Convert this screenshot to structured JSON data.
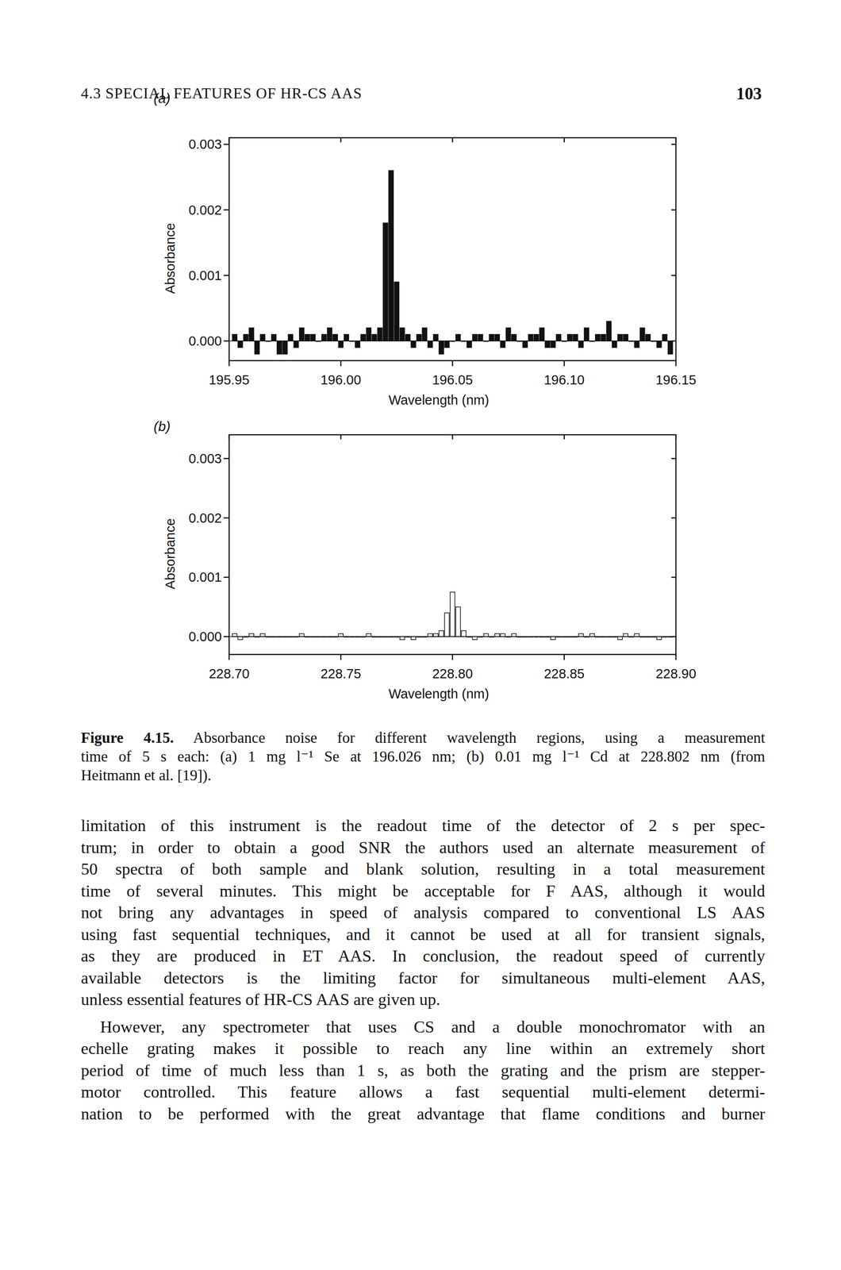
{
  "header": {
    "section": "4.3 SPECIAL FEATURES OF HR-CS AAS",
    "page": "103"
  },
  "chart_data": [
    {
      "type": "bar",
      "title": "(a)",
      "xlabel": "Wavelength (nm)",
      "ylabel": "Absorbance",
      "color": "#111111",
      "xlim": [
        195.95,
        196.15
      ],
      "ylim": [
        -0.0003,
        0.0031
      ],
      "xticks": [
        195.95,
        {
          "value": 196,
          "label": "196.00"
        },
        196.05,
        {
          "value": 196.1,
          "label": "196.10"
        },
        196.15
      ],
      "yticks": [
        {
          "value": 0,
          "label": "0.000"
        },
        {
          "value": 0.001,
          "label": "0.001"
        },
        {
          "value": 0.002,
          "label": "0.002"
        },
        {
          "value": 0.003,
          "label": "0.003"
        }
      ],
      "x": [
        195.9525,
        195.955,
        195.9575,
        195.96,
        195.9625,
        195.965,
        195.9675,
        195.97,
        195.9725,
        195.975,
        195.9775,
        195.98,
        195.9825,
        195.985,
        195.9875,
        195.99,
        195.9925,
        195.995,
        195.9975,
        196,
        196.0025,
        196.005,
        196.0075,
        196.01,
        196.0125,
        196.015,
        196.0175,
        196.02,
        196.0225,
        196.025,
        196.0275,
        196.03,
        196.0325,
        196.035,
        196.0375,
        196.04,
        196.0425,
        196.045,
        196.0475,
        196.05,
        196.0525,
        196.055,
        196.0575,
        196.06,
        196.0625,
        196.065,
        196.0675,
        196.07,
        196.0725,
        196.075,
        196.0775,
        196.08,
        196.0825,
        196.085,
        196.0875,
        196.09,
        196.0925,
        196.095,
        196.0975,
        196.1,
        196.1025,
        196.105,
        196.1075,
        196.11,
        196.1125,
        196.115,
        196.1175,
        196.12,
        196.1225,
        196.125,
        196.1275,
        196.13,
        196.1325,
        196.135,
        196.1375,
        196.14,
        196.1425,
        196.145,
        196.1475
      ],
      "values": [
        0.0001,
        -0.0001,
        0.0001,
        0.0002,
        -0.0002,
        0.0001,
        0,
        0.0001,
        -0.0002,
        -0.0002,
        0.0001,
        -0.0001,
        0.0002,
        0.0001,
        0.0001,
        0,
        0.0001,
        0.0002,
        0.0001,
        -0.0001,
        0.0001,
        0,
        -0.0001,
        0.0001,
        0.0002,
        0.0001,
        0.0002,
        0.0018,
        0.0026,
        0.0009,
        0.0002,
        0.0001,
        -0.0001,
        0.0001,
        0.0002,
        -0.0001,
        0.0001,
        -0.0002,
        -0.0001,
        0,
        0.0001,
        0,
        -0.0001,
        0.0001,
        0.0001,
        0,
        0.0001,
        0.0001,
        -0.0001,
        0.0002,
        0.0001,
        0,
        -0.0001,
        0.0001,
        0.0001,
        0.0002,
        -0.0001,
        -0.0001,
        0.0001,
        0,
        0.0001,
        0.0001,
        -0.0001,
        0.0002,
        0,
        0.0001,
        0.0001,
        0.0003,
        -0.0001,
        0.0001,
        0.0001,
        0,
        -0.0001,
        0.0002,
        0.0001,
        0,
        -0.0001,
        0.0001,
        -0.0002
      ]
    },
    {
      "type": "bar",
      "title": "(b)",
      "xlabel": "Wavelength (nm)",
      "ylabel": "Absorbance",
      "color": "#111111",
      "xlim": [
        228.7,
        228.9
      ],
      "ylim": [
        -0.0003,
        0.0034
      ],
      "xticks": [
        {
          "value": 228.7,
          "label": "228.70"
        },
        228.75,
        {
          "value": 228.8,
          "label": "228.80"
        },
        228.85,
        {
          "value": 228.9,
          "label": "228.90"
        }
      ],
      "yticks": [
        {
          "value": 0,
          "label": "0.000"
        },
        {
          "value": 0.001,
          "label": "0.001"
        },
        {
          "value": 0.002,
          "label": "0.002"
        },
        {
          "value": 0.003,
          "label": "0.003"
        }
      ],
      "x": [
        228.7025,
        228.705,
        228.7075,
        228.71,
        228.7125,
        228.715,
        228.7175,
        228.72,
        228.7225,
        228.725,
        228.7275,
        228.73,
        228.7325,
        228.735,
        228.7375,
        228.74,
        228.7425,
        228.745,
        228.7475,
        228.75,
        228.7525,
        228.755,
        228.7575,
        228.76,
        228.7625,
        228.765,
        228.7675,
        228.77,
        228.7725,
        228.775,
        228.7775,
        228.78,
        228.7825,
        228.785,
        228.7875,
        228.79,
        228.7925,
        228.795,
        228.7975,
        228.8,
        228.8025,
        228.805,
        228.8075,
        228.81,
        228.8125,
        228.815,
        228.8175,
        228.82,
        228.8225,
        228.825,
        228.8275,
        228.83,
        228.8325,
        228.835,
        228.8375,
        228.84,
        228.8425,
        228.845,
        228.8475,
        228.85,
        228.8525,
        228.855,
        228.8575,
        228.86,
        228.8625,
        228.865,
        228.8675,
        228.87,
        228.8725,
        228.875,
        228.8775,
        228.88,
        228.8825,
        228.885,
        228.8875,
        228.89,
        228.8925,
        228.895,
        228.8975
      ],
      "values": [
        5e-05,
        -5e-05,
        0,
        5e-05,
        0,
        5e-05,
        0,
        0,
        0,
        0,
        0,
        0,
        5e-05,
        0,
        0,
        0,
        0,
        0,
        0,
        5e-05,
        0,
        0,
        0,
        0,
        5e-05,
        0,
        0,
        0,
        0,
        0,
        -5e-05,
        0,
        -5e-05,
        0,
        0,
        5e-05,
        5e-05,
        0.0001,
        0.0004,
        0.00075,
        0.0005,
        0.0001,
        0,
        -5e-05,
        0,
        5e-05,
        0,
        5e-05,
        5e-05,
        0,
        5e-05,
        0,
        0,
        0,
        0,
        0,
        0,
        -5e-05,
        0,
        0,
        0,
        0,
        5e-05,
        0,
        5e-05,
        0,
        0,
        0,
        0,
        -5e-05,
        5e-05,
        0,
        5e-05,
        0,
        0,
        0,
        -5e-05,
        0,
        0
      ]
    }
  ],
  "caption": {
    "label": "Figure 4.15.",
    "lines": [
      "Absorbance noise for different wavelength regions, using a measurement",
      "time of 5 s each: (a) 1 mg l⁻¹ Se at 196.026 nm; (b) 0.01 mg l⁻¹ Cd at 228.802 nm (from",
      "Heitmann et al. [19])."
    ]
  },
  "body": [
    [
      "limitation of this instrument is the readout time of the detector of 2 s per spec-",
      "trum; in order to obtain a good SNR the authors used an alternate measurement of",
      "50 spectra of both sample and blank solution, resulting in a total measurement",
      "time of several minutes. This might be acceptable for F AAS, although it would",
      "not bring any advantages in speed of analysis compared to conventional LS AAS",
      "using fast sequential techniques, and it cannot be used at all for transient signals,",
      "as they are produced in ET AAS. In conclusion, the readout speed of currently",
      "available detectors is the limiting factor for simultaneous multi-element AAS,",
      "unless essential features of HR-CS AAS are given up."
    ],
    [
      "However, any spectrometer that uses CS and a double monochromator with an",
      "echelle grating makes it possible to reach any line within an extremely short",
      "period of time of much less than 1 s, as both the grating and the prism are stepper-",
      "motor controlled. This feature allows a fast sequential multi-element determi-",
      "nation to be performed with the great advantage that flame conditions and burner"
    ]
  ]
}
